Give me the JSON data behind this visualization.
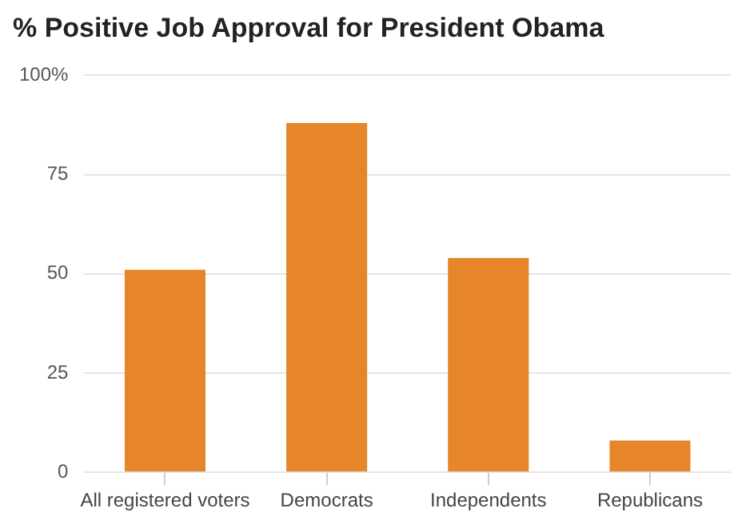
{
  "chart_data": {
    "type": "bar",
    "title": "% Positive Job Approval for President Obama",
    "categories": [
      "All registered voters",
      "Democrats",
      "Independents",
      "Republicans"
    ],
    "values": [
      51,
      88,
      54,
      8
    ],
    "color": "#e6852a",
    "ylim": [
      0,
      100
    ],
    "yticks": [
      0,
      25,
      50,
      75,
      {
        "value": 100,
        "label": "100%"
      }
    ],
    "grid": "y"
  }
}
